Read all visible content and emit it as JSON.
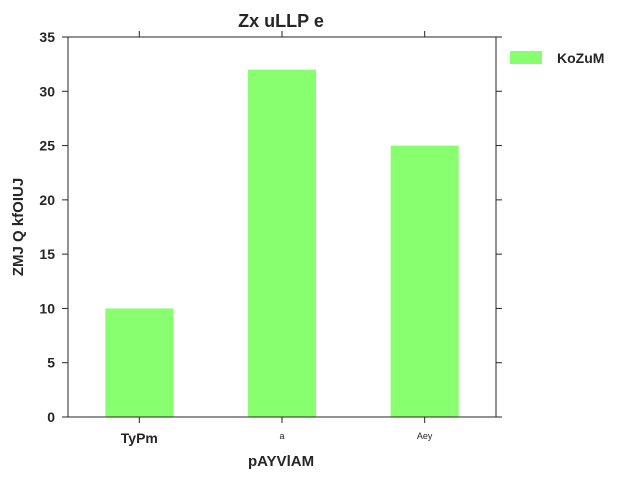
{
  "chart_data": {
    "type": "bar",
    "title": "Zx uLLP  e",
    "xlabel": "pAYVlAM",
    "ylabel": "ZMJ Q kfOIUJ",
    "categories": [
      "TyPm",
      "a",
      "Aey"
    ],
    "series": [
      {
        "name": "KoZuM",
        "values": [
          10,
          32,
          25
        ],
        "color": "#88ff6e"
      }
    ],
    "ylim": [
      0,
      35
    ],
    "yticks": [
      0,
      5,
      10,
      15,
      20,
      25,
      30,
      35
    ],
    "grid": false,
    "legend_position": "outside-top-right"
  }
}
